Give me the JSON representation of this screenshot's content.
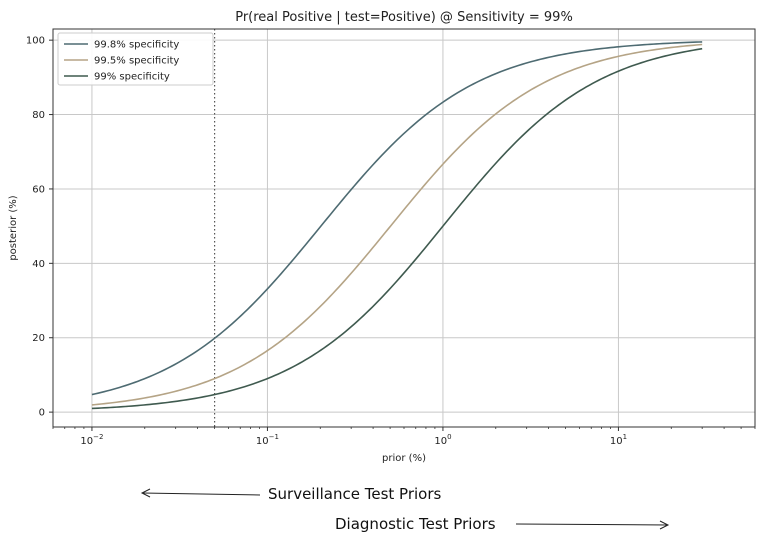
{
  "chart_data": {
    "type": "line",
    "title": "Pr(real Positive | test=Positive) @ Sensitivity = 99%",
    "xlabel": "prior (%)",
    "ylabel": "posterior (%)",
    "xscale": "log",
    "xlim": [
      0.006,
      60
    ],
    "ylim": [
      -4,
      103
    ],
    "xticks": [
      {
        "value": 0.01,
        "base": "10",
        "exp": "−2"
      },
      {
        "value": 0.1,
        "base": "10",
        "exp": "−1"
      },
      {
        "value": 1,
        "base": "10",
        "exp": "0"
      },
      {
        "value": 10,
        "base": "10",
        "exp": "1"
      }
    ],
    "yticks": [
      0,
      20,
      40,
      60,
      80,
      100
    ],
    "grid": true,
    "legend_position": "top-left",
    "sensitivity": 0.99,
    "vline": {
      "x": 0.05,
      "style": "dotted",
      "color": "#555555"
    },
    "series": [
      {
        "name": "99.8% specificity",
        "specificity": 0.998,
        "color": "#4e6b72",
        "style": "solid",
        "x": [
          0.01,
          0.02,
          0.05,
          0.1,
          0.2,
          0.5,
          1,
          2,
          5,
          10,
          30
        ],
        "y": [
          4.7,
          9.0,
          19.9,
          33.2,
          49.8,
          71.3,
          83.4,
          91.0,
          96.3,
          98.2,
          99.5
        ]
      },
      {
        "name": "99.5% specificity",
        "specificity": 0.995,
        "color": "#b5a486",
        "style": "solid",
        "x": [
          0.01,
          0.02,
          0.05,
          0.1,
          0.2,
          0.5,
          1,
          2,
          5,
          10,
          30
        ],
        "y": [
          1.9,
          3.8,
          9.0,
          16.6,
          28.4,
          49.9,
          66.7,
          80.2,
          91.2,
          95.7,
          98.8
        ]
      },
      {
        "name": "99% specificity",
        "specificity": 0.99,
        "color": "#3f5a4f",
        "style": "solid",
        "x": [
          0.01,
          0.02,
          0.05,
          0.1,
          0.2,
          0.5,
          1,
          2,
          5,
          10,
          30
        ],
        "y": [
          1.0,
          1.9,
          4.7,
          9.0,
          16.6,
          33.2,
          50.0,
          66.9,
          83.9,
          91.7,
          97.7
        ]
      }
    ]
  },
  "annotations": {
    "surveillance": "Surveillance Test Priors",
    "diagnostic": "Diagnostic Test Priors"
  }
}
